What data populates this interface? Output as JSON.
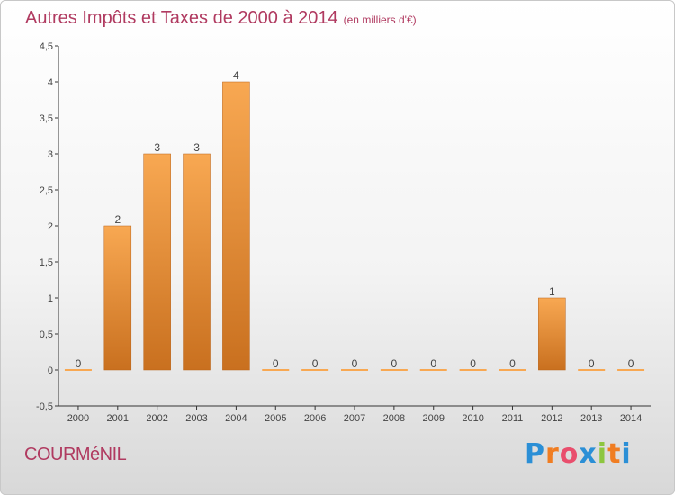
{
  "header": {
    "title": "Autres Impôts et Taxes de 2000 à 2014",
    "unit": "(en milliers d'€)"
  },
  "footer": {
    "commune": "COURMéNIL",
    "brand_letters": [
      "P",
      "r",
      "o",
      "x",
      "i",
      "t",
      "i"
    ],
    "brand_colors": [
      "#2b8fd6",
      "#f07d22",
      "#e94e6d",
      "#2b8fd6",
      "#8dc63f",
      "#f07d22",
      "#2b8fd6"
    ]
  },
  "chart_data": {
    "type": "bar",
    "title": "Autres Impôts et Taxes de 2000 à 2014",
    "xlabel": "",
    "ylabel": "",
    "categories": [
      "2000",
      "2001",
      "2002",
      "2003",
      "2004",
      "2005",
      "2006",
      "2007",
      "2008",
      "2009",
      "2010",
      "2011",
      "2012",
      "2013",
      "2014"
    ],
    "values": [
      0,
      2,
      3,
      3,
      4,
      0,
      0,
      0,
      0,
      0,
      0,
      0,
      1,
      0,
      0
    ],
    "value_labels": [
      "0",
      "2",
      "3",
      "3",
      "4",
      "0",
      "0",
      "0",
      "0",
      "0",
      "0",
      "0",
      "1",
      "0",
      "0"
    ],
    "ylim": [
      -0.5,
      4.5
    ],
    "yticks": [
      -0.5,
      0,
      0.5,
      1,
      1.5,
      2,
      2.5,
      3,
      3.5,
      4,
      4.5
    ],
    "ytick_labels": [
      "-0,5",
      "0",
      "0,5",
      "1",
      "1,5",
      "2",
      "2,5",
      "3",
      "3,5",
      "4",
      "4,5"
    ],
    "grid": false,
    "colors": {
      "bar_top": "#f8a852",
      "bar_bottom": "#c9701f",
      "axis": "#333333",
      "text": "#444444"
    }
  }
}
